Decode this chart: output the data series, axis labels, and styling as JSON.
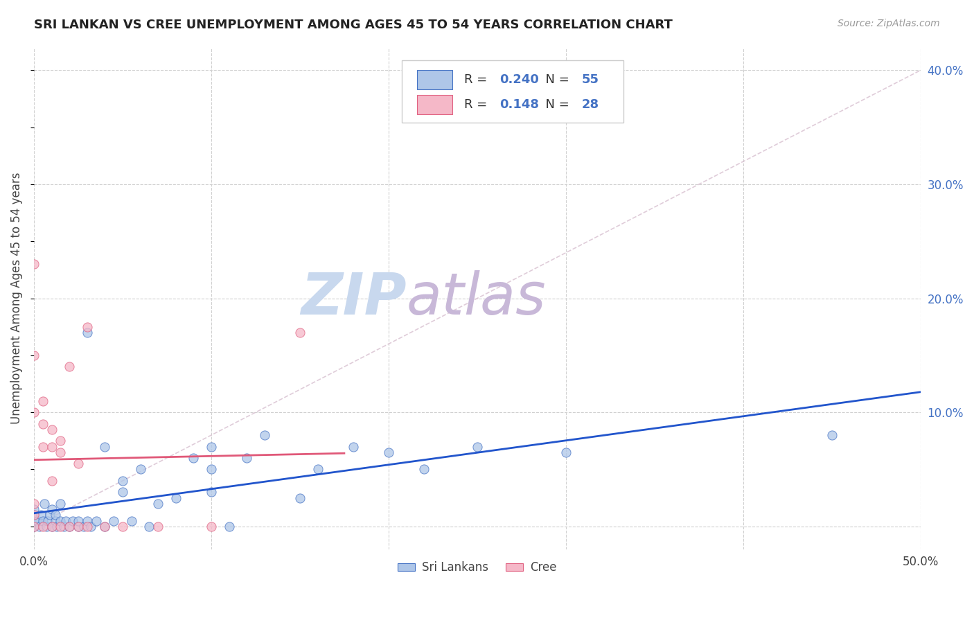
{
  "title": "SRI LANKAN VS CREE UNEMPLOYMENT AMONG AGES 45 TO 54 YEARS CORRELATION CHART",
  "source": "Source: ZipAtlas.com",
  "ylabel": "Unemployment Among Ages 45 to 54 years",
  "xlim": [
    0.0,
    0.5
  ],
  "ylim": [
    -0.02,
    0.42
  ],
  "xticks": [
    0.0,
    0.1,
    0.2,
    0.3,
    0.4,
    0.5
  ],
  "yticks_right": [
    0.0,
    0.1,
    0.2,
    0.3,
    0.4
  ],
  "yticklabels_right": [
    "",
    "10.0%",
    "20.0%",
    "30.0%",
    "40.0%"
  ],
  "sri_lankan_color": "#aec6e8",
  "cree_color": "#f5b8c8",
  "sri_lankan_edge_color": "#4472c4",
  "cree_edge_color": "#e06080",
  "sri_lankan_line_color": "#2255cc",
  "cree_line_color": "#e05878",
  "diag_line_color": "#d8c0d0",
  "watermark_zip_color": "#c8d8ee",
  "watermark_atlas_color": "#c8b8d8",
  "grid_color": "#d0d0d0",
  "R_sri": 0.24,
  "N_sri": 55,
  "R_cree": 0.148,
  "N_cree": 28,
  "sri_lankans_x": [
    0.0,
    0.0,
    0.0,
    0.0,
    0.002,
    0.003,
    0.004,
    0.005,
    0.006,
    0.007,
    0.008,
    0.009,
    0.01,
    0.01,
    0.012,
    0.012,
    0.013,
    0.015,
    0.015,
    0.017,
    0.018,
    0.02,
    0.022,
    0.025,
    0.025,
    0.028,
    0.03,
    0.03,
    0.032,
    0.035,
    0.04,
    0.04,
    0.045,
    0.05,
    0.05,
    0.055,
    0.06,
    0.065,
    0.07,
    0.08,
    0.09,
    0.1,
    0.1,
    0.1,
    0.11,
    0.12,
    0.13,
    0.15,
    0.16,
    0.18,
    0.2,
    0.22,
    0.25,
    0.3,
    0.45
  ],
  "sri_lankans_y": [
    0.0,
    0.005,
    0.01,
    0.015,
    0.005,
    0.0,
    0.01,
    0.005,
    0.02,
    0.0,
    0.005,
    0.01,
    0.0,
    0.015,
    0.005,
    0.01,
    0.0,
    0.005,
    0.02,
    0.0,
    0.005,
    0.0,
    0.005,
    0.0,
    0.005,
    0.0,
    0.005,
    0.17,
    0.0,
    0.005,
    0.0,
    0.07,
    0.005,
    0.03,
    0.04,
    0.005,
    0.05,
    0.0,
    0.02,
    0.025,
    0.06,
    0.07,
    0.03,
    0.05,
    0.0,
    0.06,
    0.08,
    0.025,
    0.05,
    0.07,
    0.065,
    0.05,
    0.07,
    0.065,
    0.08
  ],
  "cree_x": [
    0.0,
    0.0,
    0.0,
    0.0,
    0.0,
    0.0,
    0.005,
    0.005,
    0.005,
    0.005,
    0.01,
    0.01,
    0.01,
    0.01,
    0.015,
    0.015,
    0.015,
    0.02,
    0.02,
    0.025,
    0.025,
    0.03,
    0.03,
    0.04,
    0.05,
    0.07,
    0.1,
    0.15
  ],
  "cree_y": [
    0.0,
    0.01,
    0.02,
    0.1,
    0.15,
    0.23,
    0.0,
    0.07,
    0.09,
    0.11,
    0.0,
    0.04,
    0.07,
    0.085,
    0.0,
    0.065,
    0.075,
    0.0,
    0.14,
    0.0,
    0.055,
    0.0,
    0.175,
    0.0,
    0.0,
    0.0,
    0.0,
    0.17
  ]
}
